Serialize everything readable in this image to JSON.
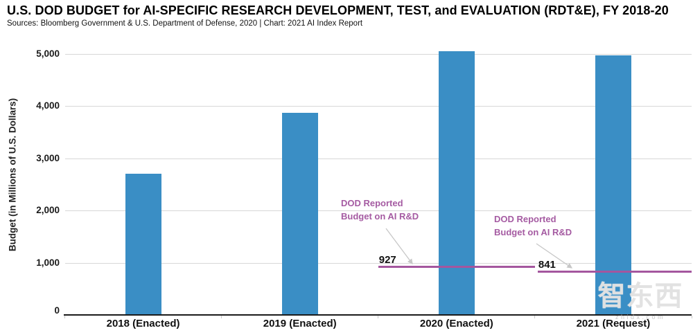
{
  "header": {
    "title": "U.S. DOD BUDGET for AI-SPECIFIC RESEARCH DEVELOPMENT, TEST, and EVALUATION (RDT&E), FY 2018-20",
    "subtitle": "Sources: Bloomberg Government & U.S. Department of Defense, 2020 | Chart: 2021 AI Index Report"
  },
  "chart_data": {
    "type": "bar",
    "title": "U.S. DOD BUDGET for AI-SPECIFIC RESEARCH DEVELOPMENT, TEST, and EVALUATION (RDT&E), FY 2018-20",
    "categories": [
      "2018 (Enacted)",
      "2019 (Enacted)",
      "2020 (Enacted)",
      "2021 (Request)"
    ],
    "values": [
      2700,
      3870,
      5050,
      4980
    ],
    "xlabel": "",
    "ylabel": "Budget (in Millions of U.S. Dollars)",
    "ylim": [
      0,
      5000
    ],
    "yticks": [
      0,
      1000,
      2000,
      3000,
      4000,
      5000
    ],
    "ytick_labels": [
      "0",
      "1,000",
      "2,000",
      "3,000",
      "4,000",
      "5,000"
    ],
    "grid": true,
    "legend": "none",
    "bar_color": "#3a8ec5",
    "annotation_line_color": "#a4569e",
    "annotation_text_color": "#a55ba2",
    "annotations": [
      {
        "category": "2020 (Enacted)",
        "label_lines": [
          "DOD Reported",
          "Budget on AI R&D"
        ],
        "value": 927,
        "value_label": "927"
      },
      {
        "category": "2021 (Request)",
        "label_lines": [
          "DOD Reported",
          "Budget on AI R&D"
        ],
        "value": 841,
        "value_label": "841"
      }
    ]
  },
  "watermark": {
    "logo_text": "智东西",
    "site": "zhidx.com"
  }
}
